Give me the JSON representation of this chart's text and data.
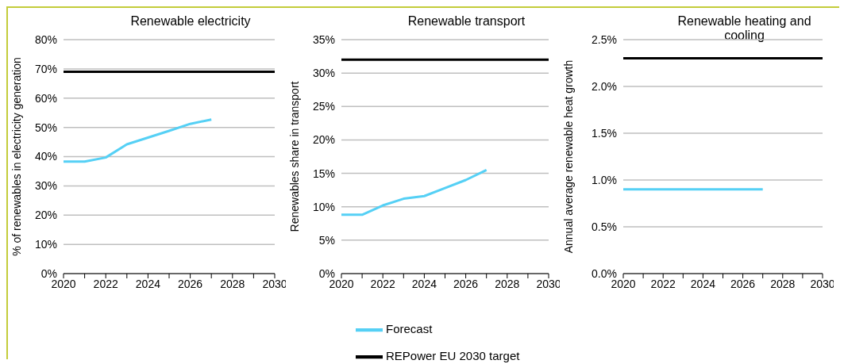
{
  "chart_data": [
    {
      "type": "line",
      "title": "Renewable electricity",
      "ylabel": "% of renewables  in electricity generation",
      "xlim": [
        2020,
        2030
      ],
      "xticks": [
        2020,
        {
          "value": 2021,
          "label": null
        },
        2022,
        {
          "value": 2023,
          "label": null
        },
        2024,
        {
          "value": 2025,
          "label": null
        },
        2026,
        {
          "value": 2027,
          "label": null
        },
        2028,
        {
          "value": 2029,
          "label": null
        },
        2030
      ],
      "ylim": [
        0,
        80
      ],
      "yticks": [
        {
          "value": 0,
          "label": "0%"
        },
        {
          "value": 10,
          "label": "10%"
        },
        {
          "value": 20,
          "label": "20%"
        },
        {
          "value": 30,
          "label": "30%"
        },
        {
          "value": 40,
          "label": "40%"
        },
        {
          "value": 50,
          "label": "50%"
        },
        {
          "value": 60,
          "label": "60%"
        },
        {
          "value": 70,
          "label": "70%"
        },
        {
          "value": 80,
          "label": "80%"
        }
      ],
      "grid": "y",
      "legend": false,
      "series": [
        {
          "color": "#55d0f5",
          "x": [
            2020,
            2021,
            2022,
            2023,
            2024,
            2025,
            2026,
            2027
          ],
          "values": [
            38.3,
            38.3,
            39.7,
            44.2,
            46.5,
            48.8,
            51.2,
            52.7
          ]
        },
        {
          "color": "#000000",
          "x": [
            2020,
            2030
          ],
          "values": [
            69,
            69
          ]
        }
      ]
    },
    {
      "type": "line",
      "title": "Renewable transport",
      "ylabel": "Renewables  share in transport",
      "xlim": [
        2020,
        2030
      ],
      "xticks": [
        2020,
        {
          "value": 2021,
          "label": null
        },
        2022,
        {
          "value": 2023,
          "label": null
        },
        2024,
        {
          "value": 2025,
          "label": null
        },
        2026,
        {
          "value": 2027,
          "label": null
        },
        2028,
        {
          "value": 2029,
          "label": null
        },
        2030
      ],
      "ylim": [
        0,
        35
      ],
      "yticks": [
        {
          "value": 0,
          "label": "0%"
        },
        {
          "value": 5,
          "label": "5%"
        },
        {
          "value": 10,
          "label": "10%"
        },
        {
          "value": 15,
          "label": "15%"
        },
        {
          "value": 20,
          "label": "20%"
        },
        {
          "value": 25,
          "label": "25%"
        },
        {
          "value": 30,
          "label": "30%"
        },
        {
          "value": 35,
          "label": "35%"
        }
      ],
      "grid": "y",
      "legend": "bottom",
      "series": [
        {
          "name": "Forecast",
          "color": "#55d0f5",
          "x": [
            2020,
            2021,
            2022,
            2023,
            2024,
            2025,
            2026,
            2027
          ],
          "values": [
            8.8,
            8.8,
            10.2,
            11.2,
            11.6,
            12.8,
            14.0,
            15.5
          ]
        },
        {
          "name": "REPower EU 2030 target",
          "color": "#000000",
          "x": [
            2020,
            2030
          ],
          "values": [
            32,
            32
          ]
        }
      ]
    },
    {
      "type": "line",
      "title": "Renewable heating and cooling",
      "ylabel": "Annual average renewable  heat growth",
      "xlim": [
        2020,
        2030
      ],
      "xticks": [
        2020,
        {
          "value": 2021,
          "label": null
        },
        2022,
        {
          "value": 2023,
          "label": null
        },
        2024,
        {
          "value": 2025,
          "label": null
        },
        2026,
        {
          "value": 2027,
          "label": null
        },
        2028,
        {
          "value": 2029,
          "label": null
        },
        2030
      ],
      "ylim": [
        0,
        2.5
      ],
      "yticks": [
        {
          "value": 0,
          "label": "0.0%"
        },
        {
          "value": 0.5,
          "label": "0.5%"
        },
        {
          "value": 1,
          "label": "1.0%"
        },
        {
          "value": 1.5,
          "label": "1.5%"
        },
        {
          "value": 2,
          "label": "2.0%"
        },
        {
          "value": 2.5,
          "label": "2.5%"
        }
      ],
      "grid": "y",
      "legend": false,
      "series": [
        {
          "color": "#55d0f5",
          "x": [
            2020,
            2021,
            2022,
            2023,
            2024,
            2025,
            2026,
            2027
          ],
          "values": [
            0.9,
            0.9,
            0.9,
            0.9,
            0.9,
            0.9,
            0.9,
            0.9
          ]
        },
        {
          "color": "#000000",
          "x": [
            2020,
            2030
          ],
          "values": [
            2.3,
            2.3
          ]
        }
      ]
    }
  ]
}
